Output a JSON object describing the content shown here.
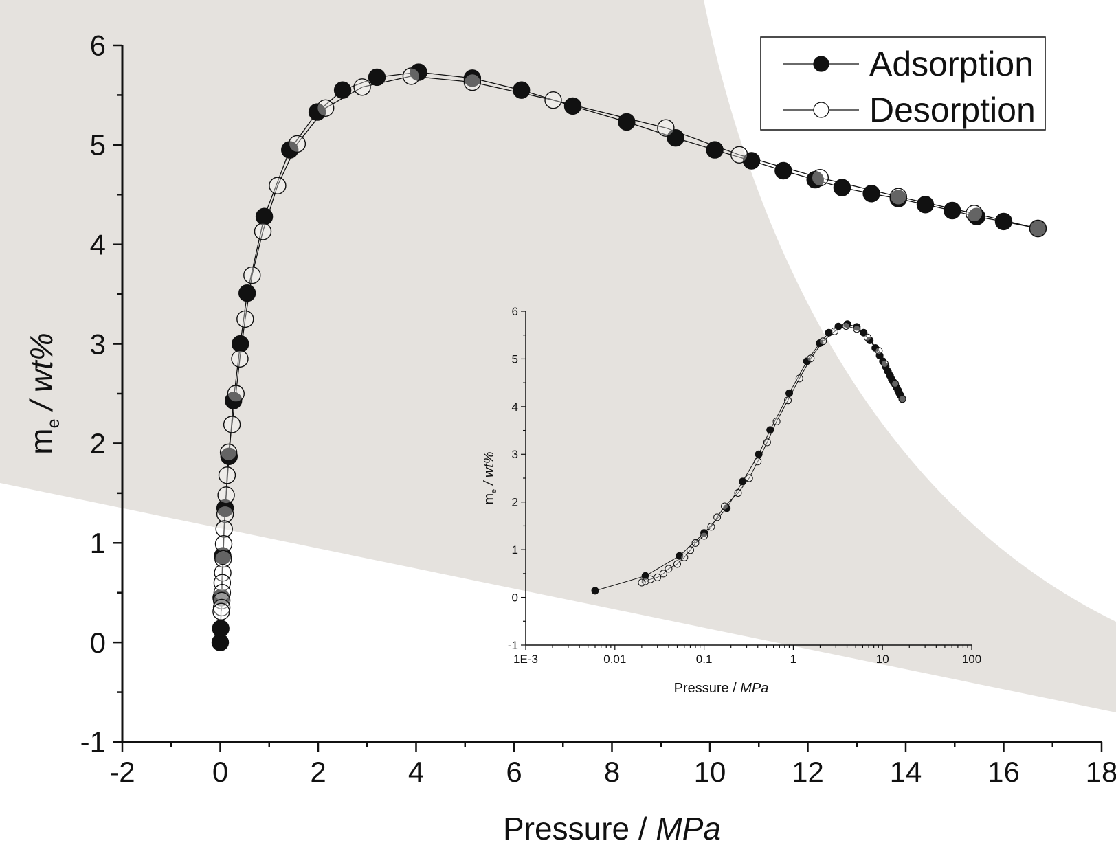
{
  "colors": {
    "background": "#ffffff",
    "region_fill": "#e5e2de",
    "axis": "#111111",
    "marker_fill": "#111111",
    "open_marker_fill": "#ffffff"
  },
  "chart_data": [
    {
      "type": "scatter",
      "title": "",
      "xlabel": {
        "text": "Pressure / ",
        "unit": "MPa"
      },
      "ylabel": {
        "symbol": "m",
        "subscript": "e",
        "unit": " / wt%"
      },
      "xlim": [
        -2,
        18
      ],
      "ylim": [
        -1,
        6
      ],
      "xticks": [
        "-2",
        "0",
        "2",
        "4",
        "6",
        "8",
        "10",
        "12",
        "14",
        "16",
        "18"
      ],
      "yticks": [
        "-1",
        "0",
        "1",
        "2",
        "3",
        "4",
        "5",
        "6"
      ],
      "grid": false,
      "legend": "top-right",
      "lines_connect_points": true,
      "series": [
        {
          "name": "Adsorption",
          "marker": "filled-circle",
          "points": [
            [
              0.0,
              0.0
            ],
            [
              0.01,
              0.14
            ],
            [
              0.02,
              0.45
            ],
            [
              0.05,
              0.87
            ],
            [
              0.1,
              1.35
            ],
            [
              0.18,
              1.87
            ],
            [
              0.27,
              2.43
            ],
            [
              0.41,
              3.0
            ],
            [
              0.55,
              3.51
            ],
            [
              0.9,
              4.28
            ],
            [
              1.42,
              4.95
            ],
            [
              1.98,
              5.33
            ],
            [
              2.5,
              5.55
            ],
            [
              3.2,
              5.68
            ],
            [
              4.05,
              5.73
            ],
            [
              5.15,
              5.67
            ],
            [
              6.15,
              5.55
            ],
            [
              7.2,
              5.39
            ],
            [
              8.3,
              5.23
            ],
            [
              9.3,
              5.07
            ],
            [
              10.1,
              4.95
            ],
            [
              10.85,
              4.84
            ],
            [
              11.5,
              4.74
            ],
            [
              12.15,
              4.65
            ],
            [
              12.7,
              4.57
            ],
            [
              13.3,
              4.51
            ],
            [
              13.85,
              4.46
            ],
            [
              14.4,
              4.4
            ],
            [
              14.95,
              4.34
            ],
            [
              15.45,
              4.28
            ],
            [
              16.0,
              4.23
            ],
            [
              16.7,
              4.16
            ]
          ]
        },
        {
          "name": "Desorption",
          "marker": "open-circle",
          "points": [
            [
              16.7,
              4.16
            ],
            [
              15.4,
              4.31
            ],
            [
              13.85,
              4.48
            ],
            [
              12.25,
              4.67
            ],
            [
              10.6,
              4.9
            ],
            [
              9.1,
              5.17
            ],
            [
              6.8,
              5.45
            ],
            [
              5.15,
              5.63
            ],
            [
              3.9,
              5.69
            ],
            [
              2.9,
              5.58
            ],
            [
              2.15,
              5.37
            ],
            [
              1.57,
              5.01
            ],
            [
              1.17,
              4.59
            ],
            [
              0.87,
              4.13
            ],
            [
              0.65,
              3.69
            ],
            [
              0.51,
              3.25
            ],
            [
              0.4,
              2.85
            ],
            [
              0.32,
              2.5
            ],
            [
              0.24,
              2.19
            ],
            [
              0.17,
              1.91
            ],
            [
              0.14,
              1.68
            ],
            [
              0.12,
              1.48
            ],
            [
              0.1,
              1.29
            ],
            [
              0.08,
              1.14
            ],
            [
              0.07,
              0.99
            ],
            [
              0.06,
              0.84
            ],
            [
              0.05,
              0.7
            ],
            [
              0.04,
              0.6
            ],
            [
              0.04,
              0.5
            ],
            [
              0.03,
              0.42
            ],
            [
              0.03,
              0.35
            ],
            [
              0.02,
              0.31
            ]
          ]
        }
      ]
    },
    {
      "type": "scatter",
      "title": "",
      "xlabel": {
        "text": "Pressure / ",
        "unit": "MPa"
      },
      "ylabel": {
        "symbol": "m",
        "subscript": "e",
        "unit": " / wt%"
      },
      "xscale": "log",
      "xlim": [
        0.001,
        100
      ],
      "ylim": [
        -1,
        6
      ],
      "xticks": [
        "1E-3",
        "0.01",
        "0.1",
        "1",
        "10",
        "100"
      ],
      "yticks": [
        "-1",
        "0",
        "1",
        "2",
        "3",
        "4",
        "5",
        "6"
      ],
      "grid": false,
      "lines_connect_points": true,
      "series": [
        {
          "marker": "filled-circle",
          "points": [
            [
              0.006,
              0.14
            ],
            [
              0.022,
              0.45
            ],
            [
              0.053,
              0.87
            ],
            [
              0.1,
              1.35
            ],
            [
              0.18,
              1.87
            ],
            [
              0.27,
              2.43
            ],
            [
              0.41,
              3.0
            ],
            [
              0.55,
              3.51
            ],
            [
              0.9,
              4.28
            ],
            [
              1.42,
              4.95
            ],
            [
              1.98,
              5.33
            ],
            [
              2.5,
              5.55
            ],
            [
              3.2,
              5.68
            ],
            [
              4.05,
              5.73
            ],
            [
              5.15,
              5.67
            ],
            [
              6.15,
              5.55
            ],
            [
              7.2,
              5.39
            ],
            [
              8.3,
              5.23
            ],
            [
              9.3,
              5.07
            ],
            [
              10.1,
              4.95
            ],
            [
              10.85,
              4.84
            ],
            [
              11.5,
              4.74
            ],
            [
              12.15,
              4.65
            ],
            [
              12.7,
              4.57
            ],
            [
              13.3,
              4.51
            ],
            [
              13.85,
              4.46
            ],
            [
              14.4,
              4.4
            ],
            [
              14.95,
              4.34
            ],
            [
              15.45,
              4.28
            ],
            [
              16.0,
              4.23
            ],
            [
              16.7,
              4.16
            ]
          ]
        },
        {
          "marker": "open-circle",
          "points": [
            [
              16.7,
              4.16
            ],
            [
              13.85,
              4.48
            ],
            [
              10.6,
              4.9
            ],
            [
              9.1,
              5.17
            ],
            [
              6.8,
              5.45
            ],
            [
              5.15,
              5.63
            ],
            [
              3.9,
              5.69
            ],
            [
              2.9,
              5.58
            ],
            [
              2.15,
              5.37
            ],
            [
              1.57,
              5.01
            ],
            [
              1.17,
              4.59
            ],
            [
              0.87,
              4.13
            ],
            [
              0.65,
              3.69
            ],
            [
              0.51,
              3.25
            ],
            [
              0.4,
              2.85
            ],
            [
              0.32,
              2.5
            ],
            [
              0.24,
              2.19
            ],
            [
              0.17,
              1.91
            ],
            [
              0.14,
              1.68
            ],
            [
              0.12,
              1.48
            ],
            [
              0.1,
              1.29
            ],
            [
              0.08,
              1.14
            ],
            [
              0.07,
              0.99
            ],
            [
              0.06,
              0.84
            ],
            [
              0.05,
              0.7
            ],
            [
              0.04,
              0.6
            ],
            [
              0.035,
              0.5
            ],
            [
              0.03,
              0.42
            ],
            [
              0.025,
              0.38
            ],
            [
              0.022,
              0.34
            ],
            [
              0.02,
              0.31
            ]
          ]
        }
      ]
    }
  ]
}
